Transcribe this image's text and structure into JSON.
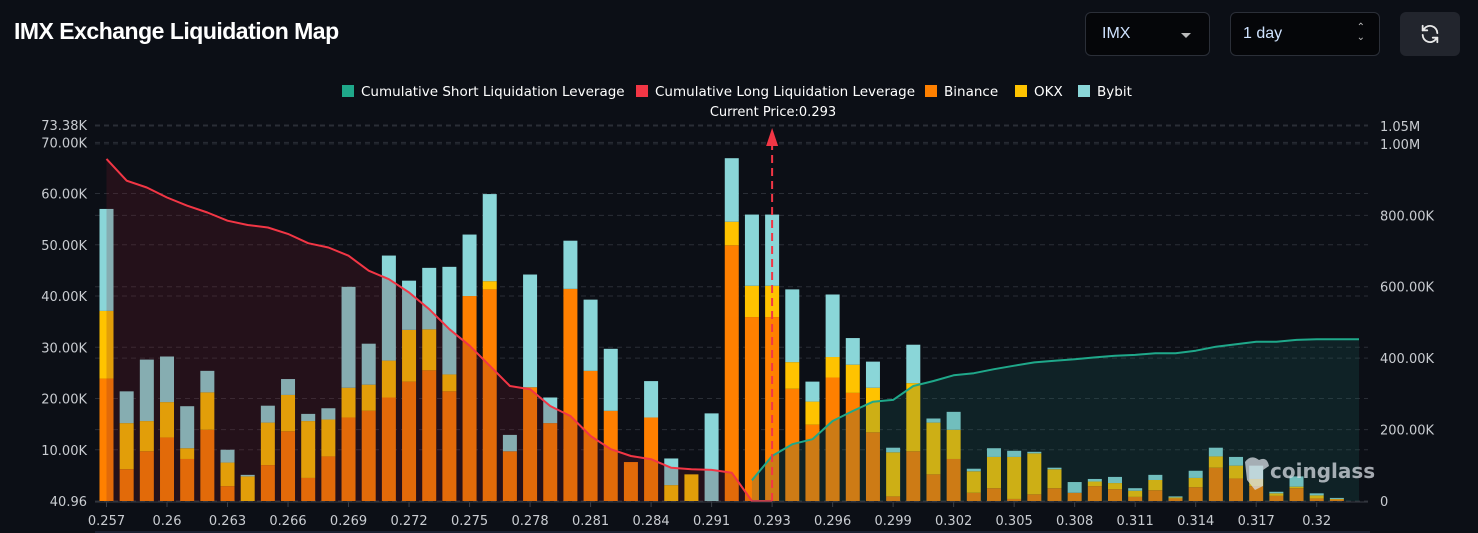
{
  "header": {
    "title": "IMX Exchange Liquidation Map",
    "coin_select": "IMX",
    "period_select": "1 day",
    "refresh_icon": "refresh-icon"
  },
  "watermark": "coinglass",
  "colors": {
    "background": "#0c0f16",
    "short_cumulative": "#1fa88a",
    "long_cumulative": "#f23645",
    "binance": "#ff8000",
    "okx": "#ffc300",
    "bybit": "#8ad6d8"
  },
  "chart_data": {
    "type": "bar",
    "stacked": true,
    "title": "",
    "current_price_label": "Current Price:0.293",
    "current_price": 0.293,
    "legend": [
      "Cumulative Short Liquidation Leverage",
      "Cumulative Long Liquidation Leverage",
      "Binance",
      "OKX",
      "Bybit"
    ],
    "legend_position": "top",
    "grid": true,
    "categories": [
      "0.257",
      "0.258",
      "0.259",
      "0.26",
      "0.261",
      "0.262",
      "0.263",
      "0.264",
      "0.265",
      "0.266",
      "0.267",
      "0.268",
      "0.269",
      "0.27",
      "0.271",
      "0.272",
      "0.273",
      "0.274",
      "0.275",
      "0.276",
      "0.277",
      "0.278",
      "0.279",
      "0.28",
      "0.281",
      "0.282",
      "0.283",
      "0.284",
      "0.285",
      "0.29",
      "0.291",
      "0.292",
      "0.292",
      "0.293",
      "0.294",
      "0.295",
      "0.296",
      "0.297",
      "0.298",
      "0.299",
      "0.3",
      "0.301",
      "0.302",
      "0.303",
      "0.304",
      "0.305",
      "0.306",
      "0.307",
      "0.308",
      "0.309",
      "0.31",
      "0.311",
      "0.312",
      "0.313",
      "0.314",
      "0.315",
      "0.316",
      "0.317",
      "0.318",
      "0.319",
      "0.32",
      "0.321"
    ],
    "x_tick_labels": [
      "0.257",
      "0.26",
      "0.263",
      "0.266",
      "0.269",
      "0.272",
      "0.275",
      "0.278",
      "0.281",
      "0.284",
      "0.291",
      "0.293",
      "0.296",
      "0.299",
      "0.302",
      "0.305",
      "0.308",
      "0.311",
      "0.314",
      "0.317",
      "0.32"
    ],
    "left_axis": {
      "min": 40.96,
      "max": 73380,
      "ticks": [
        "40.96",
        "10.00K",
        "20.00K",
        "30.00K",
        "40.00K",
        "50.00K",
        "60.00K",
        "70.00K",
        "73.38K"
      ],
      "unit": "K"
    },
    "right_axis": {
      "min": 0,
      "max": 1050000,
      "ticks": [
        "0",
        "200.00K",
        "400.00K",
        "600.00K",
        "800.00K",
        "1.00M",
        "1.05M"
      ],
      "unit": "K"
    },
    "series": [
      {
        "name": "Binance",
        "axis": "left",
        "values": [
          23.9,
          6.2,
          9.7,
          12.4,
          8.2,
          13.9,
          2.9,
          0,
          7.0,
          13.6,
          4.5,
          8.7,
          16.3,
          17.6,
          20.2,
          23.3,
          25.5,
          21.4,
          40.0,
          41.3,
          9.7,
          22.2,
          15.2,
          41.4,
          25.4,
          17.6,
          7.6,
          16.3,
          0,
          0,
          0,
          49.9,
          35.9,
          35.9,
          21.9,
          14.9,
          24.1,
          21.1,
          13.4,
          0.9,
          9.7,
          5.2,
          8.2,
          1.6,
          2.5,
          0.4,
          1.3,
          2.5,
          1.6,
          2.9,
          2.3,
          0.8,
          2.1,
          0.5,
          2.7,
          6.5,
          4.4,
          2.9,
          1.0,
          2.5,
          0.5,
          0.3
        ]
      },
      {
        "name": "OKX",
        "axis": "left",
        "values": [
          13.2,
          9.0,
          5.9,
          6.9,
          2.1,
          7.3,
          4.6,
          4.8,
          8.3,
          7.1,
          11.1,
          7.2,
          5.8,
          5.1,
          7.2,
          10.1,
          8.0,
          3.3,
          0,
          1.6,
          0,
          0,
          0,
          0,
          0,
          0,
          0,
          0,
          3.1,
          5.2,
          0,
          4.6,
          6.1,
          6.1,
          5.2,
          4.5,
          4.0,
          5.5,
          8.7,
          8.6,
          13.3,
          10.1,
          5.7,
          4.2,
          6.1,
          8.2,
          8.0,
          3.7,
          0,
          0.9,
          1.2,
          1.2,
          2.0,
          0.2,
          1.8,
          2.2,
          2.5,
          1.4,
          0.5,
          0.3,
          0.6,
          0.1
        ]
      },
      {
        "name": "Bybit",
        "axis": "left",
        "values": [
          19.9,
          6.2,
          12.0,
          8.9,
          8.2,
          4.2,
          2.5,
          0.3,
          3.3,
          3.1,
          1.4,
          2.2,
          19.7,
          8.0,
          20.5,
          9.6,
          12.0,
          21.0,
          12.0,
          17.0,
          3.2,
          22.0,
          5.0,
          9.4,
          13.9,
          12.1,
          0,
          7.1,
          5.2,
          0,
          17.1,
          12.4,
          13.9,
          13.9,
          14.2,
          3.9,
          12.2,
          5.2,
          5.1,
          0.9,
          7.5,
          0.8,
          3.5,
          0.5,
          1.7,
          1.2,
          0.3,
          0.3,
          2.1,
          0.5,
          1.2,
          0.5,
          1.0,
          0.2,
          1.4,
          1.7,
          1.7,
          2.6,
          0.3,
          2.0,
          0.4,
          0.2
        ]
      },
      {
        "name": "Cumulative Long Liquidation Leverage",
        "axis": "right",
        "type": "area-line",
        "values": [
          958,
          897,
          878,
          850,
          827,
          808,
          785,
          773,
          766,
          748,
          722,
          710,
          687,
          645,
          621,
          584,
          537,
          481,
          435,
          379,
          322,
          313,
          266,
          238,
          182,
          145,
          126,
          117,
          93,
          89,
          87,
          79,
          0,
          0,
          null,
          null,
          null,
          null,
          null,
          null,
          null,
          null,
          null,
          null,
          null,
          null,
          null,
          null,
          null,
          null,
          null,
          null,
          null,
          null,
          null,
          null,
          null,
          null,
          null,
          null,
          null,
          null
        ]
      },
      {
        "name": "Cumulative Short Liquidation Leverage",
        "axis": "right",
        "type": "area-line",
        "values": [
          null,
          null,
          null,
          null,
          null,
          null,
          null,
          null,
          null,
          null,
          null,
          null,
          null,
          null,
          null,
          null,
          null,
          null,
          null,
          null,
          null,
          null,
          null,
          null,
          null,
          null,
          null,
          null,
          null,
          null,
          null,
          null,
          58,
          126,
          159,
          173,
          224,
          252,
          278,
          283,
          322,
          336,
          352,
          358,
          369,
          379,
          388,
          393,
          397,
          402,
          407,
          409,
          414,
          414,
          421,
          432,
          439,
          446,
          446,
          451,
          453,
          453
        ]
      }
    ]
  }
}
